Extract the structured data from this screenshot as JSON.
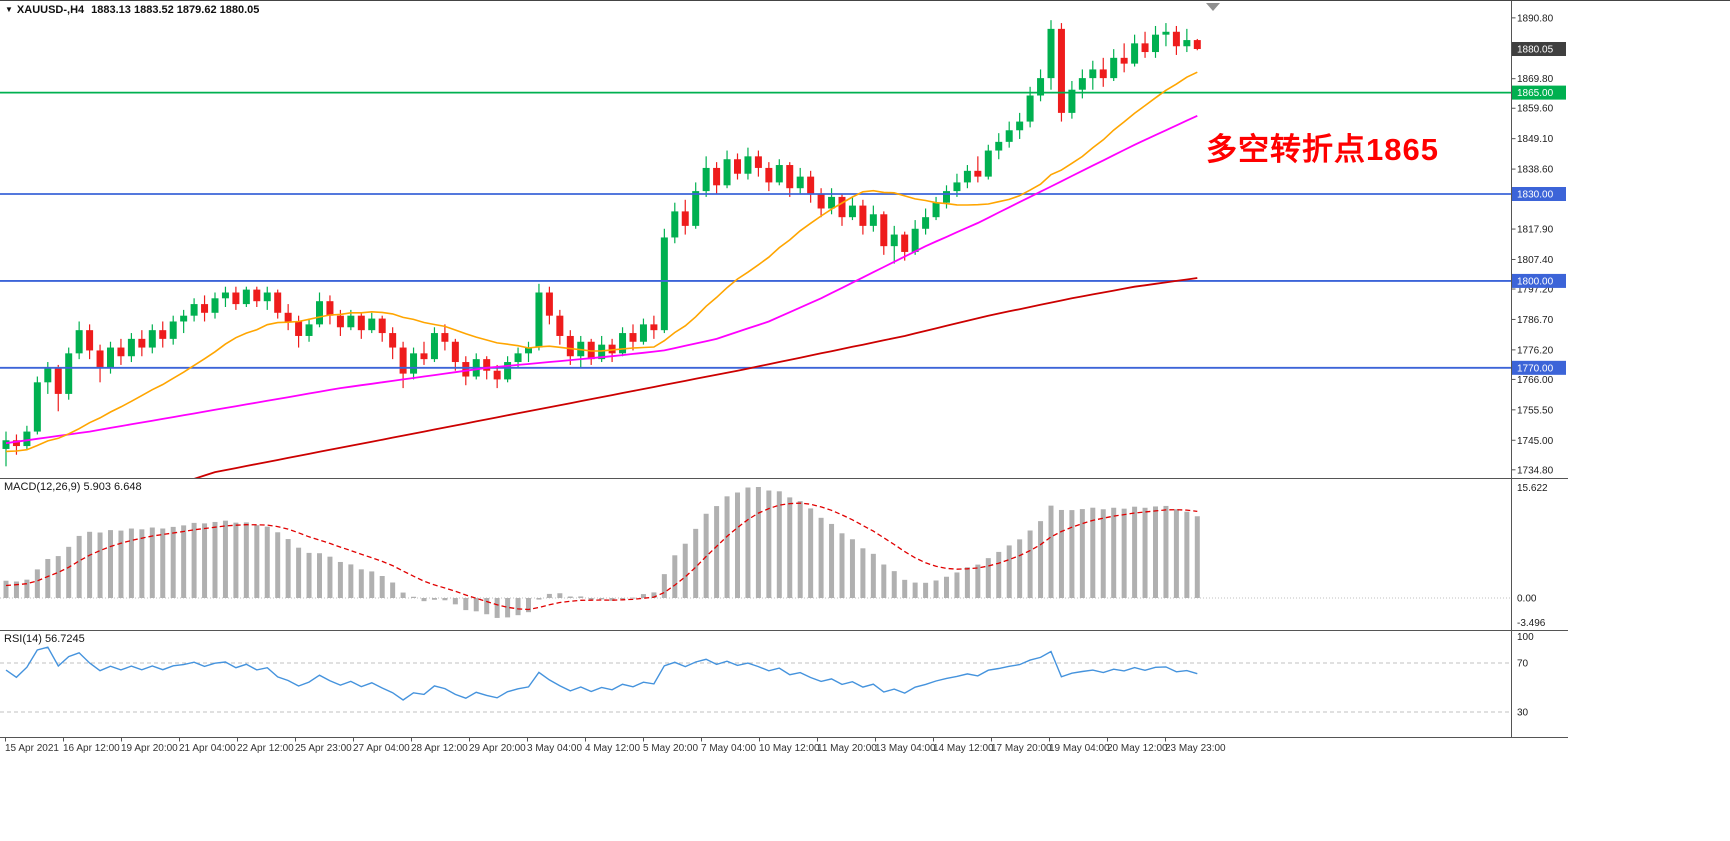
{
  "window": {
    "symbol_period": "XAUUSD-,H4",
    "ohlc_text": "1883.13 1883.52 1879.62 1880.05"
  },
  "annotation": {
    "text": "多空转折点1865",
    "color": "#ff0000"
  },
  "panels": {
    "macd": {
      "label": "MACD(12,26,9) 5.903 6.648",
      "axis_labels": [
        "15.622",
        "0.00",
        "-3.496"
      ]
    },
    "rsi": {
      "label": "RSI(14) 56.7245",
      "axis_labels": [
        "100",
        "70",
        "30"
      ]
    }
  },
  "price_scale": {
    "ticks": [
      "1890.80",
      "1869.80",
      "1859.60",
      "1849.10",
      "1838.60",
      "1817.90",
      "1807.40",
      "1797.20",
      "1786.70",
      "1776.20",
      "1766.00",
      "1755.50",
      "1745.00",
      "1734.80"
    ],
    "marker_boxes": [
      {
        "label": "1880.05",
        "price": 1880.05,
        "bg": "#3f3f3f"
      },
      {
        "label": "1865.00",
        "price": 1865.0,
        "bg": "#00b050"
      },
      {
        "label": "1830.00",
        "price": 1830.0,
        "bg": "#3c64d8"
      },
      {
        "label": "1800.00",
        "price": 1800.0,
        "bg": "#3c64d8"
      },
      {
        "label": "1770.00",
        "price": 1770.0,
        "bg": "#3c64d8"
      }
    ]
  },
  "colors": {
    "candle_up": "#00b050",
    "candle_down": "#ee1c1c",
    "level_green": "#00b050",
    "level_blue": "#3c64d8",
    "macd_hist": "#b0b0b0",
    "macd_signal": "#e00000",
    "rsi_line": "#4593dd",
    "grid_dotted": "#c0c0c0",
    "separator": "#555555",
    "axis_text": "#1c1c1c",
    "price_box_current_bg": "#3f3f3f",
    "background": "#ffffff"
  },
  "chart_data": {
    "type": "candlestick",
    "symbol": "XAUUSD-",
    "timeframe": "H4",
    "title": "XAUUSD-,H4 1883.13 1883.52 1879.62 1880.05",
    "last_bar": {
      "open": 1883.13,
      "high": 1883.52,
      "low": 1879.62,
      "close": 1880.05
    },
    "price_range": [
      1734.8,
      1890.8
    ],
    "horizontal_levels": [
      {
        "price": 1865,
        "color": "#00b050"
      },
      {
        "price": 1830,
        "color": "#3c64d8"
      },
      {
        "price": 1800,
        "color": "#3c64d8"
      },
      {
        "price": 1770,
        "color": "#3c64d8"
      }
    ],
    "ohlc": [
      [
        1742,
        1748,
        1736,
        1745
      ],
      [
        1745,
        1747,
        1740,
        1743
      ],
      [
        1743,
        1750,
        1742,
        1748
      ],
      [
        1748,
        1767,
        1747,
        1765
      ],
      [
        1765,
        1772,
        1761,
        1770
      ],
      [
        1770,
        1771,
        1755,
        1761
      ],
      [
        1761,
        1777,
        1759,
        1775
      ],
      [
        1775,
        1786,
        1773,
        1783
      ],
      [
        1783,
        1785,
        1773,
        1776
      ],
      [
        1776,
        1778,
        1765,
        1770
      ],
      [
        1770,
        1779,
        1768,
        1777
      ],
      [
        1777,
        1780,
        1771,
        1774
      ],
      [
        1774,
        1782,
        1772,
        1780
      ],
      [
        1780,
        1783,
        1774,
        1777
      ],
      [
        1777,
        1785,
        1775,
        1783
      ],
      [
        1783,
        1786,
        1777,
        1780
      ],
      [
        1780,
        1788,
        1778,
        1786
      ],
      [
        1786,
        1790,
        1782,
        1788
      ],
      [
        1788,
        1794,
        1786,
        1792
      ],
      [
        1792,
        1795,
        1786,
        1789
      ],
      [
        1789,
        1796,
        1787,
        1794
      ],
      [
        1794,
        1798,
        1791,
        1796
      ],
      [
        1796,
        1798,
        1790,
        1792
      ],
      [
        1792,
        1798,
        1791,
        1797
      ],
      [
        1797,
        1798,
        1791,
        1793
      ],
      [
        1793,
        1798,
        1790,
        1796
      ],
      [
        1796,
        1797,
        1787,
        1789
      ],
      [
        1789,
        1792,
        1783,
        1786
      ],
      [
        1786,
        1788,
        1777,
        1781
      ],
      [
        1781,
        1787,
        1779,
        1785
      ],
      [
        1785,
        1796,
        1784,
        1793
      ],
      [
        1793,
        1795,
        1785,
        1788
      ],
      [
        1788,
        1790,
        1781,
        1784
      ],
      [
        1784,
        1790,
        1783,
        1788
      ],
      [
        1788,
        1789,
        1780,
        1783
      ],
      [
        1783,
        1789,
        1782,
        1787
      ],
      [
        1787,
        1788,
        1779,
        1782
      ],
      [
        1782,
        1784,
        1773,
        1777
      ],
      [
        1777,
        1779,
        1763,
        1768
      ],
      [
        1768,
        1777,
        1766,
        1775
      ],
      [
        1775,
        1779,
        1771,
        1773
      ],
      [
        1773,
        1784,
        1772,
        1782
      ],
      [
        1782,
        1785,
        1776,
        1779
      ],
      [
        1779,
        1780,
        1769,
        1772
      ],
      [
        1772,
        1774,
        1764,
        1767
      ],
      [
        1767,
        1775,
        1766,
        1773
      ],
      [
        1773,
        1774,
        1766,
        1769
      ],
      [
        1769,
        1771,
        1763,
        1766
      ],
      [
        1766,
        1774,
        1765,
        1772
      ],
      [
        1772,
        1777,
        1770,
        1775
      ],
      [
        1775,
        1779,
        1772,
        1777
      ],
      [
        1777,
        1799,
        1776,
        1796
      ],
      [
        1796,
        1798,
        1785,
        1788
      ],
      [
        1788,
        1790,
        1778,
        1781
      ],
      [
        1781,
        1783,
        1771,
        1774
      ],
      [
        1774,
        1781,
        1770,
        1779
      ],
      [
        1779,
        1780,
        1771,
        1773
      ],
      [
        1773,
        1781,
        1772,
        1778
      ],
      [
        1778,
        1780,
        1772,
        1775
      ],
      [
        1775,
        1784,
        1774,
        1782
      ],
      [
        1782,
        1785,
        1776,
        1779
      ],
      [
        1779,
        1787,
        1778,
        1785
      ],
      [
        1785,
        1788,
        1780,
        1783
      ],
      [
        1783,
        1818,
        1782,
        1815
      ],
      [
        1815,
        1827,
        1813,
        1824
      ],
      [
        1824,
        1828,
        1816,
        1819
      ],
      [
        1819,
        1834,
        1818,
        1831
      ],
      [
        1831,
        1843,
        1829,
        1839
      ],
      [
        1839,
        1841,
        1830,
        1833
      ],
      [
        1833,
        1845,
        1832,
        1842
      ],
      [
        1842,
        1844,
        1835,
        1837
      ],
      [
        1837,
        1846,
        1835,
        1843
      ],
      [
        1843,
        1845,
        1836,
        1839
      ],
      [
        1839,
        1841,
        1831,
        1834
      ],
      [
        1834,
        1842,
        1833,
        1840
      ],
      [
        1840,
        1841,
        1829,
        1832
      ],
      [
        1832,
        1839,
        1830,
        1836
      ],
      [
        1836,
        1838,
        1827,
        1830
      ],
      [
        1830,
        1832,
        1822,
        1825
      ],
      [
        1825,
        1832,
        1823,
        1829
      ],
      [
        1829,
        1830,
        1819,
        1822
      ],
      [
        1822,
        1829,
        1821,
        1826
      ],
      [
        1826,
        1828,
        1816,
        1819
      ],
      [
        1819,
        1826,
        1817,
        1823
      ],
      [
        1823,
        1824,
        1809,
        1812
      ],
      [
        1812,
        1819,
        1806,
        1816
      ],
      [
        1816,
        1817,
        1807,
        1810
      ],
      [
        1810,
        1821,
        1809,
        1818
      ],
      [
        1818,
        1825,
        1816,
        1822
      ],
      [
        1822,
        1829,
        1821,
        1827
      ],
      [
        1827,
        1833,
        1825,
        1831
      ],
      [
        1831,
        1837,
        1829,
        1834
      ],
      [
        1834,
        1840,
        1832,
        1838
      ],
      [
        1838,
        1843,
        1834,
        1836
      ],
      [
        1836,
        1847,
        1835,
        1845
      ],
      [
        1845,
        1851,
        1842,
        1848
      ],
      [
        1848,
        1855,
        1846,
        1852
      ],
      [
        1852,
        1858,
        1849,
        1855
      ],
      [
        1855,
        1867,
        1853,
        1864
      ],
      [
        1864,
        1873,
        1862,
        1870
      ],
      [
        1870,
        1890,
        1866,
        1887
      ],
      [
        1887,
        1889,
        1855,
        1858
      ],
      [
        1858,
        1869,
        1856,
        1866
      ],
      [
        1866,
        1873,
        1863,
        1870
      ],
      [
        1870,
        1876,
        1866,
        1873
      ],
      [
        1873,
        1877,
        1867,
        1870
      ],
      [
        1870,
        1880,
        1869,
        1877
      ],
      [
        1877,
        1882,
        1872,
        1875
      ],
      [
        1875,
        1885,
        1874,
        1882
      ],
      [
        1882,
        1886,
        1877,
        1879
      ],
      [
        1879,
        1888,
        1877,
        1885
      ],
      [
        1885,
        1889,
        1881,
        1886
      ],
      [
        1886,
        1888,
        1878,
        1881
      ],
      [
        1881,
        1887,
        1879,
        1883.13
      ],
      [
        1883.13,
        1883.52,
        1879.62,
        1880.05
      ]
    ],
    "moving_averages": {
      "fast_color": "#ffa500",
      "fast_period": 20,
      "mid_color": "#ff00ff",
      "mid_anchors": [
        [
          0,
          1744
        ],
        [
          8,
          1748
        ],
        [
          16,
          1753
        ],
        [
          24,
          1758
        ],
        [
          32,
          1763
        ],
        [
          40,
          1767
        ],
        [
          46,
          1770
        ],
        [
          52,
          1772
        ],
        [
          58,
          1774
        ],
        [
          63,
          1776
        ],
        [
          68,
          1780
        ],
        [
          73,
          1786
        ],
        [
          78,
          1794
        ],
        [
          83,
          1803
        ],
        [
          88,
          1812
        ],
        [
          93,
          1820
        ],
        [
          98,
          1829
        ],
        [
          103,
          1838
        ],
        [
          108,
          1847
        ],
        [
          114,
          1857
        ]
      ],
      "slow_color": "#cc0000",
      "slow_anchors": [
        [
          14,
          1727
        ],
        [
          20,
          1734
        ],
        [
          30,
          1741
        ],
        [
          40,
          1748
        ],
        [
          50,
          1755
        ],
        [
          60,
          1762
        ],
        [
          70,
          1769
        ],
        [
          78,
          1775
        ],
        [
          86,
          1781
        ],
        [
          94,
          1788
        ],
        [
          102,
          1794
        ],
        [
          108,
          1798
        ],
        [
          114,
          1801
        ]
      ]
    },
    "macd": {
      "params": [
        12,
        26,
        9
      ],
      "main_current": 5.903,
      "signal_current": 6.648,
      "scale": [
        -3.496,
        15.622
      ]
    },
    "rsi": {
      "period": 14,
      "current": 56.7245,
      "levels": [
        70,
        30
      ],
      "scale": [
        0,
        100
      ]
    },
    "x_labels": [
      "15 Apr 2021",
      "16 Apr 12:00",
      "19 Apr 20:00",
      "21 Apr 04:00",
      "22 Apr 12:00",
      "25 Apr 23:00",
      "27 Apr 04:00",
      "28 Apr 12:00",
      "29 Apr 20:00",
      "3 May 04:00",
      "4 May 12:00",
      "5 May 20:00",
      "7 May 04:00",
      "10 May 12:00",
      "11 May 20:00",
      "13 May 04:00",
      "14 May 12:00",
      "17 May 20:00",
      "19 May 04:00",
      "20 May 12:00",
      "23 May 23:00"
    ]
  }
}
